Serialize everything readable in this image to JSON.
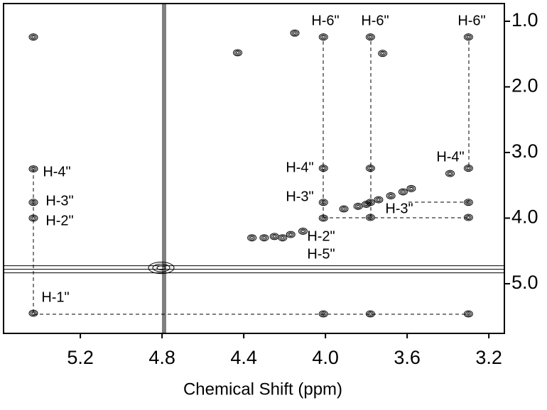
{
  "chart_data": {
    "type": "scatter",
    "x_label": "Chemical Shift (ppm)",
    "x": [
      5.43,
      5.43,
      5.43,
      5.43,
      5.43,
      4.01,
      4.01,
      4.01,
      4.01,
      4.01,
      3.78,
      3.78,
      3.78,
      3.78,
      3.78,
      3.3,
      3.3,
      3.3,
      3.3,
      3.3,
      4.15,
      4.43,
      3.72,
      3.39,
      4.36,
      4.3,
      4.25,
      4.21,
      4.17,
      4.11,
      3.91,
      3.84,
      3.8,
      3.74,
      3.68,
      3.62,
      3.58
    ],
    "y": [
      5.45,
      3.25,
      3.76,
      4.0,
      1.24,
      1.24,
      3.24,
      3.76,
      4.0,
      5.46,
      1.24,
      3.24,
      3.76,
      3.99,
      5.46,
      1.24,
      3.24,
      3.76,
      3.99,
      5.46,
      1.18,
      1.48,
      1.49,
      3.32,
      4.3,
      4.3,
      4.28,
      4.3,
      4.25,
      4.2,
      3.86,
      3.82,
      3.79,
      3.72,
      3.66,
      3.6,
      3.55
    ],
    "solvent_peak": [
      4.79,
      4.78
    ],
    "color": "#000000",
    "xlim": [
      5.576,
      3.124
    ],
    "xticks": [
      5.2,
      4.8,
      4.4,
      {
        "value": 4.0,
        "label": "4.0"
      },
      3.6,
      3.2
    ],
    "ylim": [
      0.73,
      5.757
    ],
    "yticks": [
      {
        "value": 1.0,
        "label": "1.0"
      },
      {
        "value": 2.0,
        "label": "2.0"
      },
      {
        "value": 3.0,
        "label": "3.0"
      },
      {
        "value": 4.0,
        "label": "4.0"
      },
      {
        "value": 5.0,
        "label": "5.0"
      }
    ],
    "annotations": [
      "H-6\"",
      "H-6\"",
      "H-6\"",
      "H-4\"",
      "H-4\"",
      "H-4\"",
      "H-3\"",
      "H-3\"",
      "H-3\"",
      "H-2\"",
      "H-2\"",
      "H-5\"",
      "H-1\""
    ]
  }
}
